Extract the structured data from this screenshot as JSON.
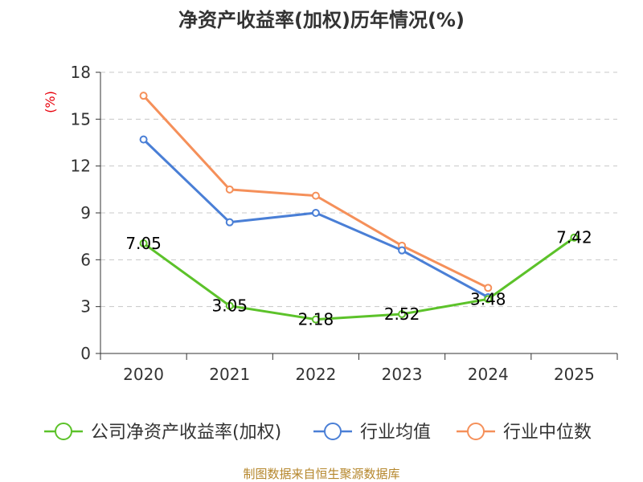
{
  "chart_data": {
    "type": "line",
    "title": "净资产收益率(加权)历年情况(%)",
    "ylabel": "(%)",
    "xlabel": "",
    "categories": [
      "2020",
      "2021",
      "2022",
      "2023",
      "2024",
      "2025"
    ],
    "ylim": [
      0,
      18
    ],
    "yticks": [
      0,
      3,
      6,
      9,
      12,
      15,
      18
    ],
    "grid": true,
    "legend_position": "bottom",
    "series": [
      {
        "name": "公司净资产收益率(加权)",
        "color": "#5cc22a",
        "values": [
          7.05,
          3.05,
          2.18,
          2.52,
          3.48,
          7.42
        ],
        "labels": [
          "7.05",
          "3.05",
          "2.18",
          "2.52",
          "3.48",
          "7.42"
        ]
      },
      {
        "name": "行业均值",
        "color": "#4a7fd6",
        "values": [
          13.7,
          8.4,
          9.0,
          6.6,
          3.6,
          null
        ]
      },
      {
        "name": "行业中位数",
        "color": "#f5905a",
        "values": [
          16.5,
          10.5,
          10.1,
          6.9,
          4.2,
          null
        ]
      }
    ],
    "source": "制图数据来自恒生聚源数据库"
  }
}
